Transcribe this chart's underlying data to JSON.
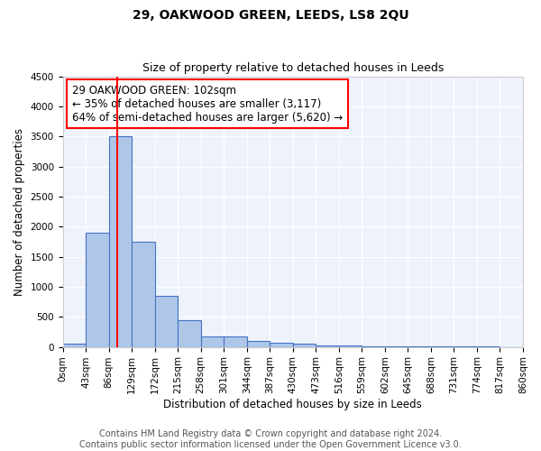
{
  "title": "29, OAKWOOD GREEN, LEEDS, LS8 2QU",
  "subtitle": "Size of property relative to detached houses in Leeds",
  "xlabel": "Distribution of detached houses by size in Leeds",
  "ylabel": "Number of detached properties",
  "bin_edges": [
    0,
    43,
    86,
    129,
    172,
    215,
    258,
    301,
    344,
    387,
    430,
    473,
    516,
    559,
    602,
    645,
    688,
    731,
    774,
    817,
    860
  ],
  "bar_heights": [
    50,
    1900,
    3500,
    1750,
    850,
    450,
    175,
    175,
    100,
    75,
    50,
    30,
    20,
    15,
    10,
    8,
    5,
    3,
    2,
    1
  ],
  "bar_color": "#aec6e8",
  "bar_edge_color": "#4472c4",
  "background_color": "#eef3fb",
  "red_line_x": 102,
  "annotation_text": "29 OAKWOOD GREEN: 102sqm\n← 35% of detached houses are smaller (3,117)\n64% of semi-detached houses are larger (5,620) →",
  "annotation_box_color": "white",
  "annotation_box_edge_color": "red",
  "ylim": [
    0,
    4500
  ],
  "yticks": [
    0,
    500,
    1000,
    1500,
    2000,
    2500,
    3000,
    3500,
    4000,
    4500
  ],
  "footer_line1": "Contains HM Land Registry data © Crown copyright and database right 2024.",
  "footer_line2": "Contains public sector information licensed under the Open Government Licence v3.0.",
  "title_fontsize": 10,
  "subtitle_fontsize": 9,
  "axis_label_fontsize": 8.5,
  "tick_fontsize": 7.5,
  "annotation_fontsize": 8.5,
  "footer_fontsize": 7
}
